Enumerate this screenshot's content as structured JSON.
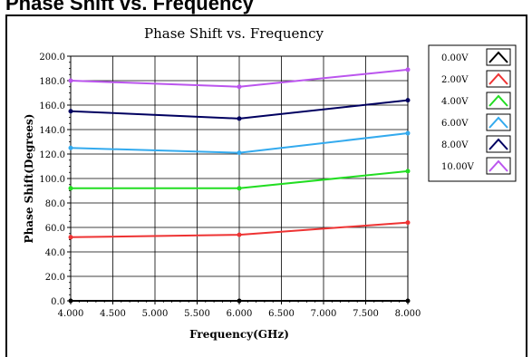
{
  "page": {
    "heading": "Phase Shift vs. Frequency"
  },
  "chart_data": {
    "type": "line",
    "title": "Phase Shift vs. Frequency",
    "xlabel": "Frequency(GHz)",
    "ylabel": "Phase Shift(Degrees)",
    "xlim": [
      4.0,
      8.0
    ],
    "ylim": [
      0,
      200
    ],
    "x_ticks": [
      "4.000",
      "4.500",
      "5.000",
      "5.500",
      "6.000",
      "6.500",
      "7.000",
      "7.500",
      "8.000"
    ],
    "y_ticks": [
      "0.0",
      "20.0",
      "40.0",
      "60.0",
      "80.0",
      "100.0",
      "120.0",
      "140.0",
      "160.0",
      "180.0",
      "200.0"
    ],
    "grid": true,
    "legend_position": "right",
    "x": [
      4.0,
      6.0,
      8.0
    ],
    "series": [
      {
        "name": "0.00V",
        "values": [
          0,
          0,
          0
        ],
        "color": "#000000"
      },
      {
        "name": "2.00V",
        "values": [
          52,
          54,
          64
        ],
        "color": "#ee3333"
      },
      {
        "name": "4.00V",
        "values": [
          92,
          92,
          106
        ],
        "color": "#22dd22"
      },
      {
        "name": "6.00V",
        "values": [
          125,
          121,
          137
        ],
        "color": "#33aaee"
      },
      {
        "name": "8.00V",
        "values": [
          155,
          149,
          164
        ],
        "color": "#000060"
      },
      {
        "name": "10.00V",
        "values": [
          180,
          175,
          189
        ],
        "color": "#bb55ee"
      }
    ]
  }
}
